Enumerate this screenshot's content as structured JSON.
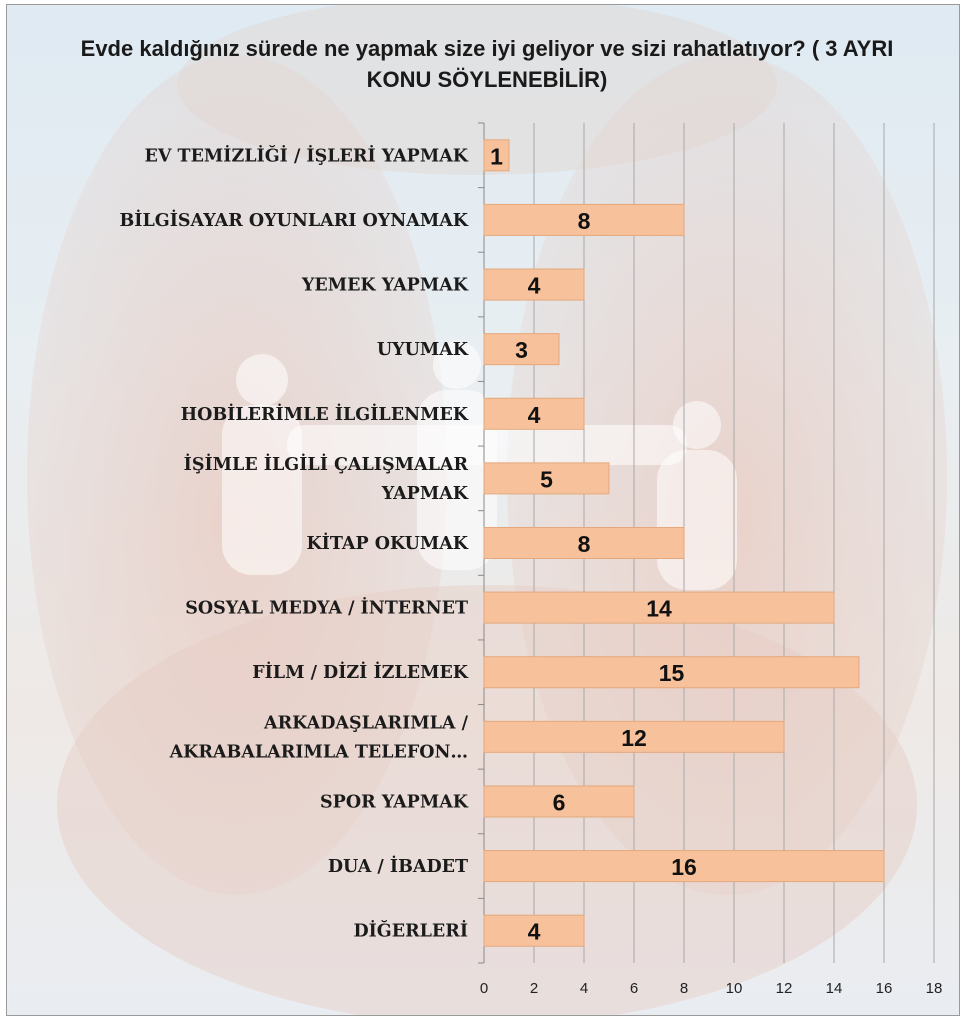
{
  "colors": {
    "bar_fill": "#f7c19b",
    "bar_stroke": "#e4a87c",
    "gridline": "#a8a8a8",
    "axis": "#8a8a8a"
  },
  "chart_data": {
    "type": "bar",
    "orientation": "horizontal",
    "title": "Evde kaldığınız sürede ne yapmak size iyi geliyor ve sizi rahatlatıyor? ( 3 AYRI  KONU SÖYLENEBİLİR)",
    "categories": [
      "EV TEMİZLİĞİ / İŞLERİ YAPMAK",
      "BİLGİSAYAR OYUNLARI OYNAMAK",
      "YEMEK YAPMAK",
      "UYUMAK",
      "HOBİLERİMLE İLGİLENMEK",
      "İŞİMLE İLGİLİ ÇALIŞMALAR YAPMAK",
      "KİTAP OKUMAK",
      "SOSYAL MEDYA / İNTERNET",
      "FİLM / DİZİ İZLEMEK",
      "ARKADAŞLARIMLA / AKRABALARIMLA TELEFON…",
      "SPOR YAPMAK",
      "DUA / İBADET",
      "DİĞERLERİ"
    ],
    "category_lines": [
      [
        "EV TEMİZLİĞİ / İŞLERİ YAPMAK"
      ],
      [
        "BİLGİSAYAR OYUNLARI OYNAMAK"
      ],
      [
        "YEMEK YAPMAK"
      ],
      [
        "UYUMAK"
      ],
      [
        "HOBİLERİMLE İLGİLENMEK"
      ],
      [
        "İŞİMLE İLGİLİ ÇALIŞMALAR",
        "YAPMAK"
      ],
      [
        "KİTAP OKUMAK"
      ],
      [
        "SOSYAL MEDYA / İNTERNET"
      ],
      [
        "FİLM / DİZİ İZLEMEK"
      ],
      [
        "ARKADAŞLARIMLA /",
        "AKRABALARIMLA TELEFON…"
      ],
      [
        "SPOR YAPMAK"
      ],
      [
        "DUA / İBADET"
      ],
      [
        "DİĞERLERİ"
      ]
    ],
    "values": [
      1,
      8,
      4,
      3,
      4,
      5,
      8,
      14,
      15,
      12,
      6,
      16,
      4
    ],
    "xlim": [
      0,
      18
    ],
    "xticks": [
      0,
      2,
      4,
      6,
      8,
      10,
      12,
      14,
      16,
      18
    ],
    "grid": true,
    "data_labels": true,
    "legend": "none"
  }
}
